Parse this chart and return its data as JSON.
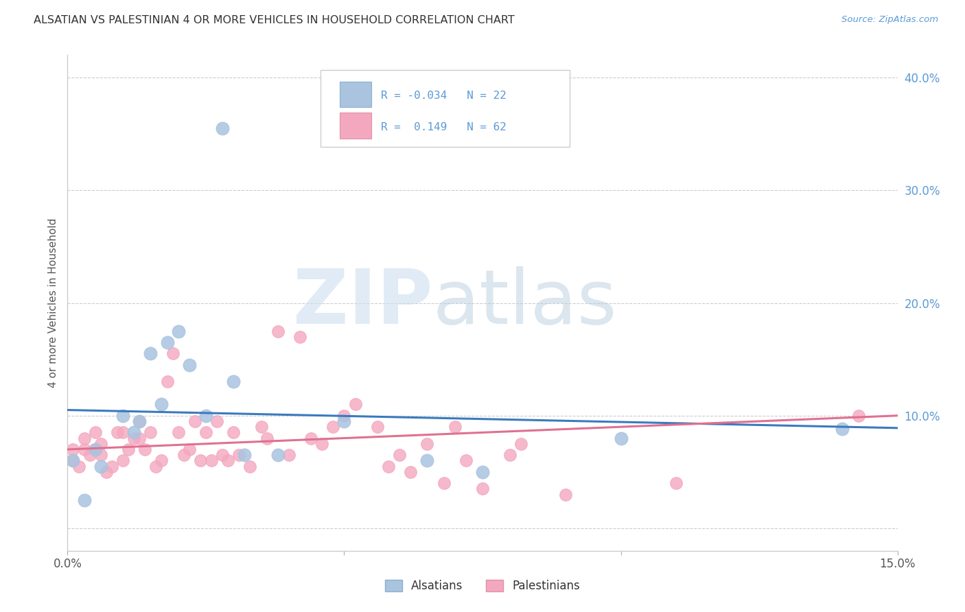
{
  "title": "ALSATIAN VS PALESTINIAN 4 OR MORE VEHICLES IN HOUSEHOLD CORRELATION CHART",
  "source": "Source: ZipAtlas.com",
  "ylabel": "4 or more Vehicles in Household",
  "xlim": [
    0.0,
    0.15
  ],
  "ylim": [
    -0.02,
    0.42
  ],
  "yticks_right": [
    0.0,
    0.1,
    0.2,
    0.3,
    0.4
  ],
  "ytick_right_labels": [
    "",
    "10.0%",
    "20.0%",
    "30.0%",
    "40.0%"
  ],
  "legend_r_alsatian": "-0.034",
  "legend_n_alsatian": "22",
  "legend_r_palestinian": "0.149",
  "legend_n_palestinian": "62",
  "alsatian_color": "#aac4e0",
  "palestinian_color": "#f4a8c0",
  "alsatian_line_color": "#3a7abf",
  "palestinian_line_color": "#e07090",
  "background_color": "#ffffff",
  "grid_color": "#cccccc",
  "alsatian_x": [
    0.001,
    0.005,
    0.006,
    0.01,
    0.012,
    0.013,
    0.015,
    0.017,
    0.018,
    0.02,
    0.022,
    0.025,
    0.028,
    0.03,
    0.032,
    0.038,
    0.05,
    0.065,
    0.075,
    0.1,
    0.14,
    0.003
  ],
  "alsatian_y": [
    0.06,
    0.07,
    0.055,
    0.1,
    0.085,
    0.095,
    0.155,
    0.11,
    0.165,
    0.175,
    0.145,
    0.1,
    0.355,
    0.13,
    0.065,
    0.065,
    0.095,
    0.06,
    0.05,
    0.08,
    0.088,
    0.025
  ],
  "palestinian_x": [
    0.001,
    0.001,
    0.002,
    0.003,
    0.003,
    0.004,
    0.005,
    0.005,
    0.006,
    0.006,
    0.007,
    0.008,
    0.009,
    0.01,
    0.01,
    0.011,
    0.012,
    0.013,
    0.013,
    0.014,
    0.015,
    0.016,
    0.017,
    0.018,
    0.019,
    0.02,
    0.021,
    0.022,
    0.023,
    0.024,
    0.025,
    0.026,
    0.027,
    0.028,
    0.029,
    0.03,
    0.031,
    0.033,
    0.035,
    0.036,
    0.038,
    0.04,
    0.042,
    0.044,
    0.046,
    0.048,
    0.05,
    0.052,
    0.056,
    0.058,
    0.06,
    0.062,
    0.065,
    0.068,
    0.07,
    0.072,
    0.075,
    0.08,
    0.082,
    0.09,
    0.11,
    0.143
  ],
  "palestinian_y": [
    0.06,
    0.07,
    0.055,
    0.07,
    0.08,
    0.065,
    0.07,
    0.085,
    0.065,
    0.075,
    0.05,
    0.055,
    0.085,
    0.06,
    0.085,
    0.07,
    0.08,
    0.08,
    0.095,
    0.07,
    0.085,
    0.055,
    0.06,
    0.13,
    0.155,
    0.085,
    0.065,
    0.07,
    0.095,
    0.06,
    0.085,
    0.06,
    0.095,
    0.065,
    0.06,
    0.085,
    0.065,
    0.055,
    0.09,
    0.08,
    0.175,
    0.065,
    0.17,
    0.08,
    0.075,
    0.09,
    0.1,
    0.11,
    0.09,
    0.055,
    0.065,
    0.05,
    0.075,
    0.04,
    0.09,
    0.06,
    0.035,
    0.065,
    0.075,
    0.03,
    0.04,
    0.1
  ],
  "alsatian_line_y0": 0.105,
  "alsatian_line_y1": 0.089,
  "palestinian_line_y0": 0.07,
  "palestinian_line_y1": 0.1
}
